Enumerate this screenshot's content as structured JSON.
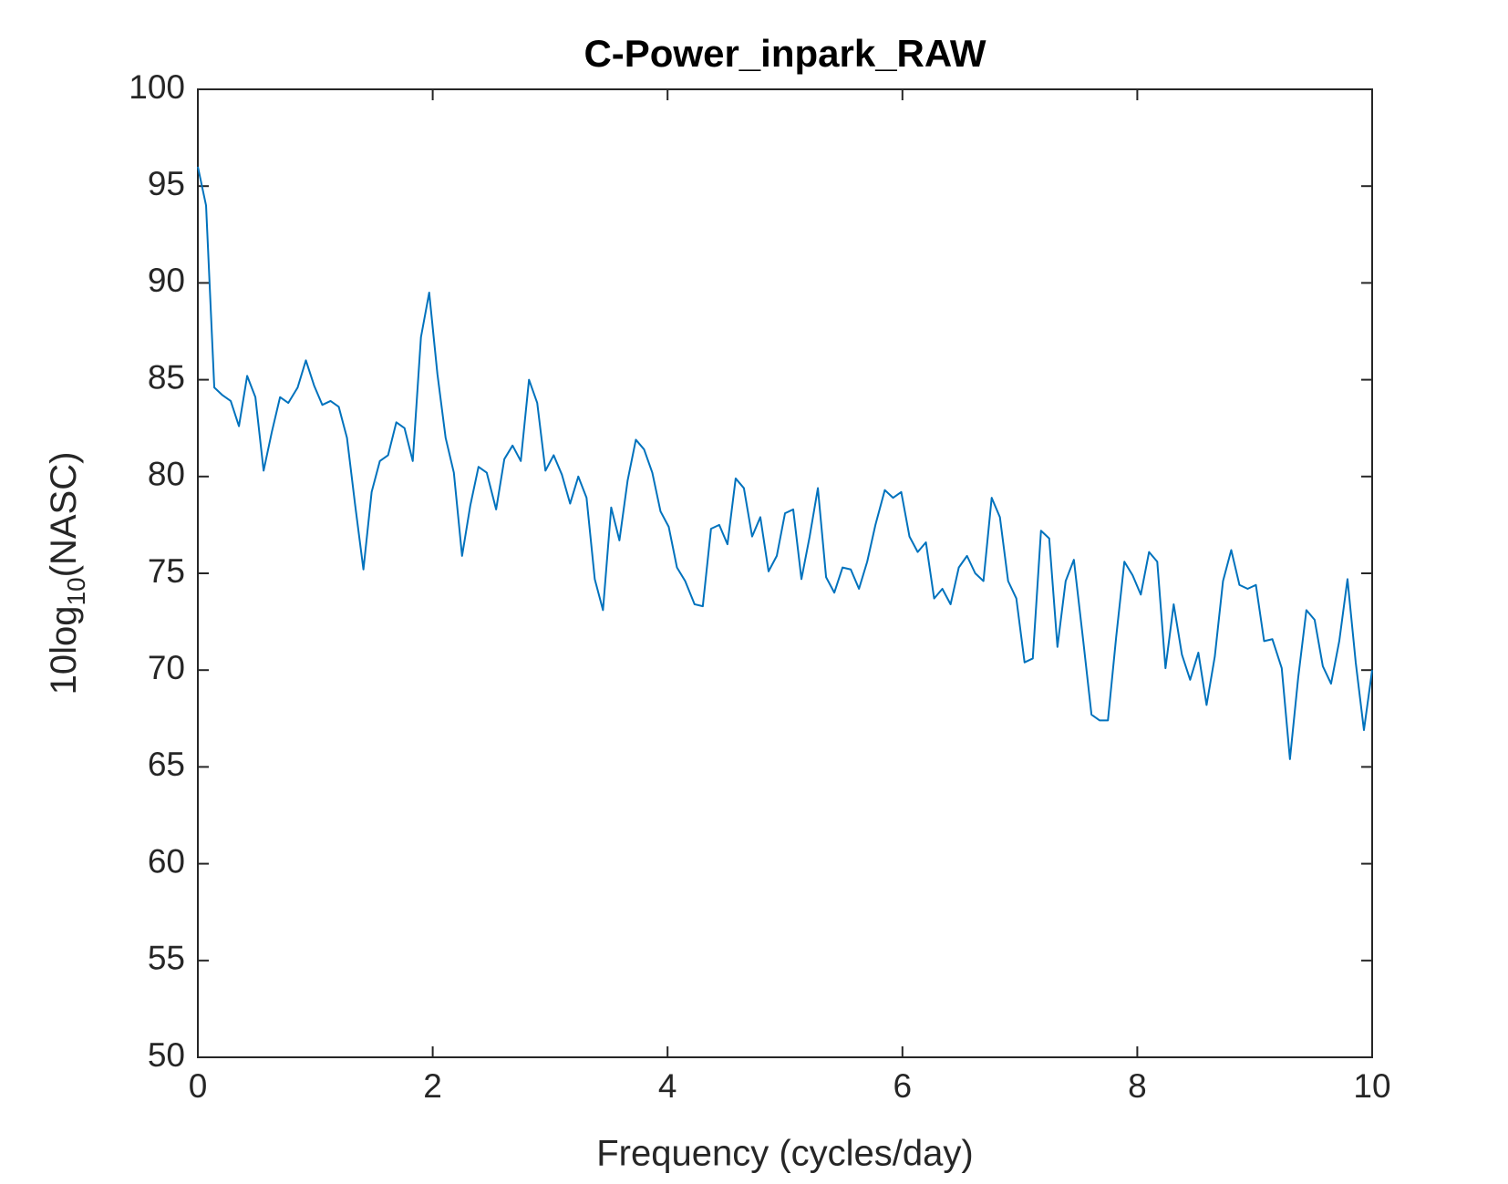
{
  "chart_data": {
    "type": "line",
    "title": "C-Power_inpark_RAW",
    "xlabel": "Frequency (cycles/day)",
    "ylabel": [
      "10log",
      "10",
      "(NASC)"
    ],
    "xlim": [
      0,
      10
    ],
    "xticks": [
      0,
      2,
      4,
      6,
      8,
      10
    ],
    "ylim": [
      50,
      100
    ],
    "yticks": [
      50,
      55,
      60,
      65,
      70,
      75,
      80,
      85,
      90,
      95,
      100
    ],
    "grid": false,
    "x": [
      0,
      0.07,
      0.14,
      0.21,
      0.28,
      0.35,
      0.42,
      0.49,
      0.56,
      0.63,
      0.7,
      0.77,
      0.85,
      0.92,
      0.99,
      1.06,
      1.13,
      1.2,
      1.27,
      1.34,
      1.41,
      1.48,
      1.55,
      1.62,
      1.69,
      1.76,
      1.83,
      1.9,
      1.97,
      2.04,
      2.11,
      2.18,
      2.25,
      2.32,
      2.39,
      2.46,
      2.54,
      2.61,
      2.68,
      2.75,
      2.82,
      2.89,
      2.96,
      3.03,
      3.1,
      3.17,
      3.24,
      3.31,
      3.38,
      3.45,
      3.52,
      3.59,
      3.66,
      3.73,
      3.8,
      3.87,
      3.94,
      4.01,
      4.08,
      4.15,
      4.23,
      4.3,
      4.37,
      4.44,
      4.51,
      4.58,
      4.65,
      4.72,
      4.79,
      4.86,
      4.93,
      5.0,
      5.07,
      5.14,
      5.21,
      5.28,
      5.35,
      5.42,
      5.49,
      5.56,
      5.63,
      5.7,
      5.77,
      5.85,
      5.92,
      5.99,
      6.06,
      6.13,
      6.2,
      6.27,
      6.34,
      6.41,
      6.48,
      6.55,
      6.62,
      6.69,
      6.76,
      6.83,
      6.9,
      6.97,
      7.04,
      7.11,
      7.18,
      7.25,
      7.32,
      7.39,
      7.46,
      7.54,
      7.61,
      7.68,
      7.75,
      7.82,
      7.89,
      7.96,
      8.03,
      8.1,
      8.17,
      8.24,
      8.31,
      8.38,
      8.45,
      8.52,
      8.59,
      8.66,
      8.73,
      8.8,
      8.87,
      8.94,
      9.01,
      9.08,
      9.15,
      9.23,
      9.3,
      9.37,
      9.44,
      9.51,
      9.58,
      9.65,
      9.72,
      9.79,
      9.86,
      9.93,
      10
    ],
    "series": [
      {
        "color": "#0072bd",
        "values": [
          96,
          94,
          84.6,
          84.2,
          83.9,
          82.6,
          85.2,
          84.1,
          80.3,
          82.3,
          84.1,
          83.8,
          84.6,
          86,
          84.7,
          83.7,
          83.9,
          83.6,
          82,
          78.5,
          75.2,
          79.2,
          80.8,
          81.1,
          82.8,
          82.5,
          80.8,
          87.2,
          89.5,
          85.3,
          82,
          80.2,
          75.9,
          78.5,
          80.5,
          80.2,
          78.3,
          80.9,
          81.6,
          80.8,
          85,
          83.8,
          80.3,
          81.1,
          80.1,
          78.6,
          80,
          78.9,
          74.7,
          73.1,
          78.4,
          76.7,
          79.8,
          81.9,
          81.4,
          80.2,
          78.2,
          77.4,
          75.3,
          74.6,
          73.4,
          73.3,
          77.3,
          77.5,
          76.5,
          79.9,
          79.4,
          76.9,
          77.9,
          75.1,
          75.9,
          78.1,
          78.3,
          74.7,
          76.9,
          79.4,
          74.8,
          74,
          75.3,
          75.2,
          74.2,
          75.6,
          77.5,
          79.3,
          78.9,
          79.2,
          76.9,
          76.1,
          76.6,
          73.7,
          74.2,
          73.4,
          75.3,
          75.9,
          75,
          74.6,
          78.9,
          77.9,
          74.6,
          73.7,
          70.4,
          70.6,
          77.2,
          76.8,
          71.2,
          74.6,
          75.7,
          71.5,
          67.7,
          67.4,
          67.4,
          71.7,
          75.6,
          74.9,
          73.9,
          76.1,
          75.6,
          70.1,
          73.4,
          70.8,
          69.5,
          70.9,
          68.2,
          70.7,
          74.6,
          76.2,
          74.4,
          74.2,
          74.4,
          71.5,
          71.6,
          70.1,
          65.4,
          69.6,
          73.1,
          72.6,
          70.2,
          69.3,
          71.5,
          74.7,
          70.4,
          66.9,
          70
        ]
      }
    ]
  }
}
